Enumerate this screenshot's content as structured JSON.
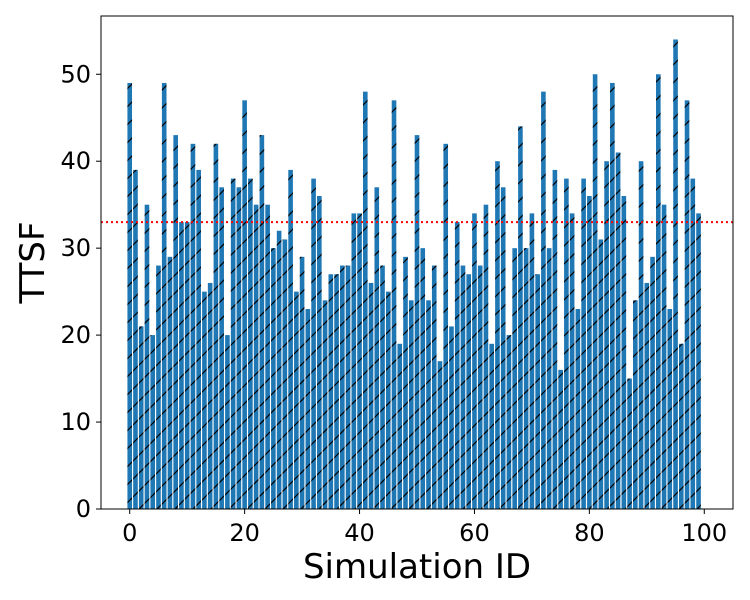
{
  "chart_data": {
    "type": "bar",
    "xlabel": "Simulation ID",
    "ylabel": "TTSF",
    "xlim": [
      -5,
      105
    ],
    "ylim": [
      0,
      56.7
    ],
    "x_ticks": [
      0,
      20,
      40,
      60,
      80,
      100
    ],
    "y_ticks": [
      0,
      10,
      20,
      30,
      40,
      50
    ],
    "x_tick_labels": [
      "0",
      "20",
      "40",
      "60",
      "80",
      "100"
    ],
    "y_tick_labels": [
      "0",
      "10",
      "20",
      "30",
      "40",
      "50"
    ],
    "reference_line": {
      "y": 33,
      "style": "dotted",
      "color": "#ff0000"
    },
    "bar_color": "#1f77b4",
    "hatch": "/",
    "grid": false,
    "x": [
      0,
      1,
      2,
      3,
      4,
      5,
      6,
      7,
      8,
      9,
      10,
      11,
      12,
      13,
      14,
      15,
      16,
      17,
      18,
      19,
      20,
      21,
      22,
      23,
      24,
      25,
      26,
      27,
      28,
      29,
      30,
      31,
      32,
      33,
      34,
      35,
      36,
      37,
      38,
      39,
      40,
      41,
      42,
      43,
      44,
      45,
      46,
      47,
      48,
      49,
      50,
      51,
      52,
      53,
      54,
      55,
      56,
      57,
      58,
      59,
      60,
      61,
      62,
      63,
      64,
      65,
      66,
      67,
      68,
      69,
      70,
      71,
      72,
      73,
      74,
      75,
      76,
      77,
      78,
      79,
      80,
      81,
      82,
      83,
      84,
      85,
      86,
      87,
      88,
      89,
      90,
      91,
      92,
      93,
      94,
      95,
      96,
      97,
      98,
      99
    ],
    "values": [
      49,
      39,
      21,
      35,
      20,
      28,
      49,
      29,
      43,
      33,
      33,
      42,
      39,
      25,
      26,
      42,
      37,
      20,
      38,
      37,
      47,
      38,
      35,
      43,
      35,
      30,
      32,
      31,
      39,
      25,
      29,
      23,
      38,
      36,
      24,
      27,
      27,
      28,
      28,
      34,
      34,
      48,
      26,
      37,
      28,
      25,
      47,
      19,
      29,
      24,
      43,
      30,
      24,
      28,
      17,
      42,
      21,
      33,
      28,
      27,
      34,
      28,
      35,
      19,
      40,
      37,
      20,
      30,
      44,
      30,
      34,
      27,
      48,
      30,
      39,
      16,
      38,
      34,
      23,
      38,
      36,
      50,
      31,
      40,
      49,
      41,
      36,
      15,
      24,
      40,
      26,
      29,
      50,
      35,
      23,
      54,
      19,
      47,
      38,
      34
    ]
  }
}
